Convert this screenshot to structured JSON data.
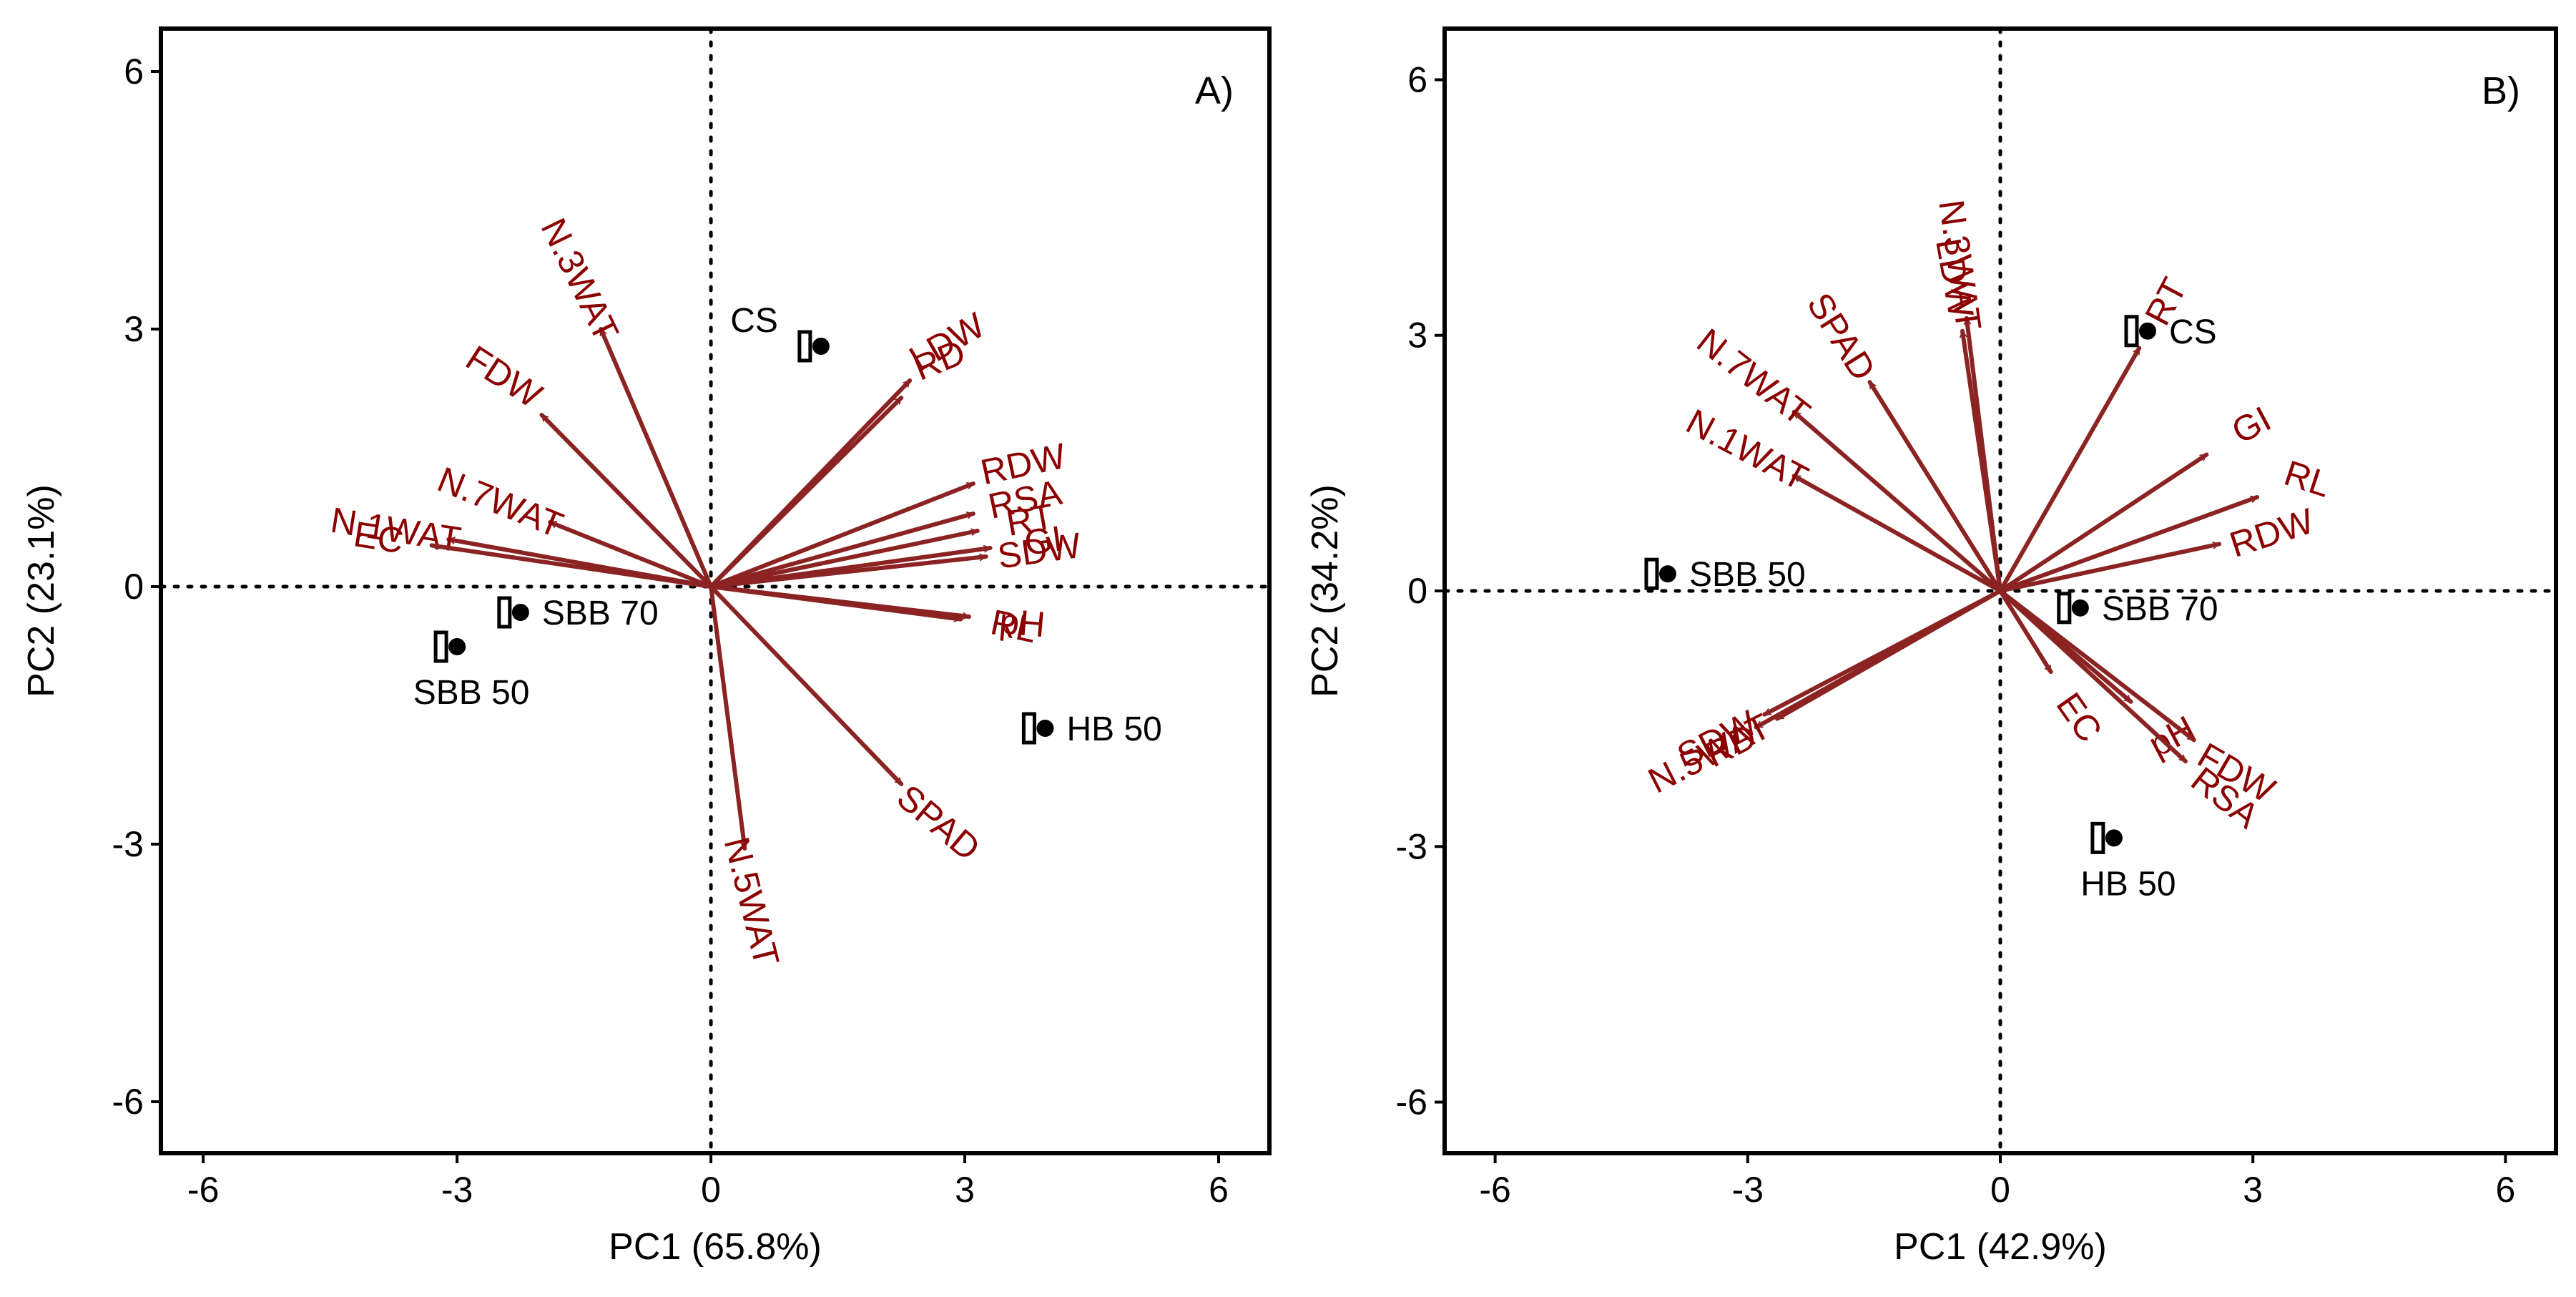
{
  "chart_data": [
    {
      "type": "scatter",
      "subtype": "pca-biplot",
      "panel_label": "A)",
      "xlabel": "PC1 (65.8%)",
      "ylabel": "PC2 (23.1%)",
      "xlim": [
        -6.5,
        6.6
      ],
      "ylim": [
        -6.6,
        6.5
      ],
      "xticks": [
        -6,
        -3,
        0,
        3,
        6
      ],
      "yticks": [
        -6,
        -3,
        0,
        3,
        6
      ],
      "xtick_labels": [
        "-6",
        "-3",
        "0",
        "3",
        "6"
      ],
      "ytick_labels": [
        "-6",
        "-3",
        "0",
        "3",
        "6"
      ],
      "observations": [
        {
          "label": "CS",
          "x": 1.3,
          "y": 2.8,
          "label_side": "left"
        },
        {
          "label": "SBB 70",
          "x": -2.25,
          "y": -0.3,
          "label_side": "right"
        },
        {
          "label": "SBB 50",
          "x": -3.0,
          "y": -0.7,
          "label_side": "below"
        },
        {
          "label": "HB 50",
          "x": 3.95,
          "y": -1.65,
          "label_side": "right"
        }
      ],
      "loadings": [
        {
          "label": "N.3WAT",
          "x": -1.3,
          "y": 3.0,
          "angle": 64
        },
        {
          "label": "FDW",
          "x": -2.0,
          "y": 2.0,
          "angle": 33
        },
        {
          "label": "N.7WAT",
          "x": -1.9,
          "y": 0.75,
          "angle": 22
        },
        {
          "label": "N.1WAT",
          "x": -3.1,
          "y": 0.55,
          "angle": 9
        },
        {
          "label": "EC",
          "x": -3.3,
          "y": 0.48,
          "angle": 9
        },
        {
          "label": "LDW",
          "x": 2.35,
          "y": 2.4,
          "angle": -30
        },
        {
          "label": "RD",
          "x": 2.25,
          "y": 2.2,
          "angle": -22
        },
        {
          "label": "RDW",
          "x": 3.1,
          "y": 1.2,
          "angle": -12
        },
        {
          "label": "RSA",
          "x": 3.1,
          "y": 0.85,
          "angle": -12
        },
        {
          "label": "RT",
          "x": 3.15,
          "y": 0.65,
          "angle": -10
        },
        {
          "label": "GI",
          "x": 3.3,
          "y": 0.45,
          "angle": -8
        },
        {
          "label": "SDW",
          "x": 3.25,
          "y": 0.35,
          "angle": -8
        },
        {
          "label": "pH",
          "x": 3.05,
          "y": -0.35,
          "angle": 5
        },
        {
          "label": "RL",
          "x": 2.95,
          "y": -0.38,
          "angle": 12
        },
        {
          "label": "SPAD",
          "x": 2.25,
          "y": -2.3,
          "angle": 40
        },
        {
          "label": "N.5WAT",
          "x": 0.4,
          "y": -3.05,
          "angle": 76
        }
      ]
    },
    {
      "type": "scatter",
      "subtype": "pca-biplot",
      "panel_label": "B)",
      "xlabel": "PC1 (42.9%)",
      "ylabel": "PC2 (34.2%)",
      "xlim": [
        -6.6,
        6.6
      ],
      "ylim": [
        -6.6,
        6.6
      ],
      "xticks": [
        -6,
        -3,
        0,
        3,
        6
      ],
      "yticks": [
        -6,
        -3,
        0,
        3,
        6
      ],
      "xtick_labels": [
        "-6",
        "-3",
        "0",
        "3",
        "6"
      ],
      "ytick_labels": [
        "-6",
        "-3",
        "0",
        "3",
        "6"
      ],
      "observations": [
        {
          "label": "CS",
          "x": 1.75,
          "y": 3.05,
          "label_side": "right"
        },
        {
          "label": "SBB 50",
          "x": -3.95,
          "y": 0.2,
          "label_side": "right"
        },
        {
          "label": "SBB 70",
          "x": 0.95,
          "y": -0.2,
          "label_side": "right"
        },
        {
          "label": "HB 50",
          "x": 1.35,
          "y": -2.9,
          "label_side": "below"
        }
      ],
      "loadings": [
        {
          "label": "N.3WAT",
          "x": -0.4,
          "y": 3.2,
          "angle": 82
        },
        {
          "label": "LDW",
          "x": -0.45,
          "y": 3.05,
          "angle": 80
        },
        {
          "label": "SPAD",
          "x": -1.55,
          "y": 2.45,
          "angle": 58
        },
        {
          "label": "N.7WAT",
          "x": -2.45,
          "y": 2.1,
          "angle": 38
        },
        {
          "label": "N.1WAT",
          "x": -2.45,
          "y": 1.35,
          "angle": 28
        },
        {
          "label": "RT",
          "x": 1.65,
          "y": 2.85,
          "angle": -62
        },
        {
          "label": "GI",
          "x": 2.45,
          "y": 1.6,
          "angle": -28
        },
        {
          "label": "RL",
          "x": 3.05,
          "y": 1.1,
          "angle": 18
        },
        {
          "label": "RDW",
          "x": 2.6,
          "y": 0.55,
          "angle": -18
        },
        {
          "label": "SDW",
          "x": -2.8,
          "y": -1.45,
          "angle": -27
        },
        {
          "label": "N.5WAT",
          "x": -2.9,
          "y": -1.6,
          "angle": -27
        },
        {
          "label": "RD",
          "x": -2.65,
          "y": -1.5,
          "angle": -27
        },
        {
          "label": "EC",
          "x": 0.6,
          "y": -0.95,
          "angle": 55
        },
        {
          "label": "pH",
          "x": 1.55,
          "y": -1.3,
          "angle": -28
        },
        {
          "label": "FDW",
          "x": 2.3,
          "y": -1.75,
          "angle": 30
        },
        {
          "label": "RSA",
          "x": 2.2,
          "y": -2.0,
          "angle": 38
        }
      ]
    }
  ]
}
